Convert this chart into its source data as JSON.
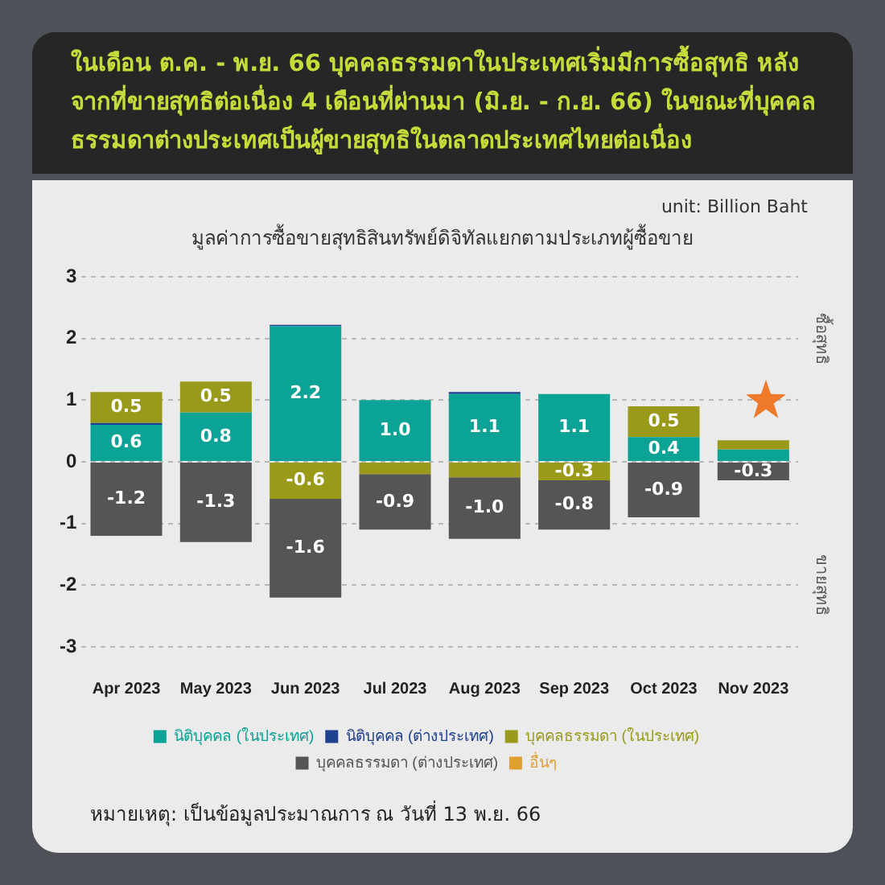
{
  "chart_data": {
    "type": "bar",
    "title": "ในเดือน ต.ค. - พ.ย. 66 บุคคลธรรมดาในประเทศเริ่มมีการซื้อสุทธิ หลังจากที่ขายสุทธิต่อเนื่อง 4 เดือนที่ผ่านมา (มิ.ย. - ก.ย. 66) ในขณะที่บุคคลธรรมดาต่างประเทศเป็นผู้ขายสุทธิในตลาดประเทศไทยต่อเนื่อง",
    "subtitle": "มูลค่าการซื้อขายสุทธิสินทรัพย์ดิจิทัลแยกตามประเภทผู้ซื้อขาย",
    "categories": [
      "Apr 2023",
      "May 2023",
      "Jun 2023",
      "Jul 2023",
      "Aug 2023",
      "Sep 2023",
      "Oct 2023",
      "Nov 2023"
    ],
    "stacked": true,
    "series": [
      {
        "name": "นิติบุคคล (ในประเทศ)",
        "color": "#0aa396",
        "values": [
          0.6,
          0.8,
          2.2,
          1.0,
          1.1,
          1.1,
          0.4,
          0.2
        ],
        "value_labels": [
          "0.6",
          "0.8",
          "2.2",
          "1.0",
          "1.1",
          "1.1",
          "0.4",
          null
        ]
      },
      {
        "name": "นิติบุคคล (ต่างประเทศ)",
        "color": "#1f3f8f",
        "values": [
          0.03,
          null,
          0.02,
          null,
          0.03,
          null,
          null,
          null
        ]
      },
      {
        "name": "บุคคลธรรมดา (ในประเทศ)",
        "color": "#9a9a1a",
        "values": [
          0.5,
          0.5,
          -0.6,
          -0.2,
          -0.25,
          -0.3,
          0.5,
          0.15
        ],
        "value_labels": [
          "0.5",
          "0.5",
          "-0.6",
          null,
          null,
          "-0.3",
          "0.5",
          null
        ]
      },
      {
        "name": "บุคคลธรรมดา (ต่างประเทศ)",
        "color": "#555555",
        "values": [
          -1.2,
          -1.3,
          -1.6,
          -0.9,
          -1.0,
          -0.8,
          -0.9,
          -0.3
        ],
        "value_labels": [
          "-1.2",
          "-1.3",
          "-1.6",
          "-0.9",
          "-1.0",
          "-0.8",
          "-0.9",
          "-0.3"
        ]
      },
      {
        "name": "อื่นๆ",
        "color": "#e0a030",
        "values": [
          null,
          null,
          null,
          null,
          null,
          null,
          null,
          null
        ]
      }
    ],
    "ylim": [
      -3,
      3
    ],
    "yticks": [
      -3,
      -2,
      -1,
      0,
      1,
      2,
      3
    ],
    "grid": "y",
    "legend": "bottom",
    "annotations": [
      "unit: Billion Baht",
      "ซื้อสุทธิ",
      "ขายสุทธิ",
      "หมายเหตุ: เป็นข้อมูลประมาณการ ณ วันที่ 13 พ.ย. 66"
    ]
  }
}
